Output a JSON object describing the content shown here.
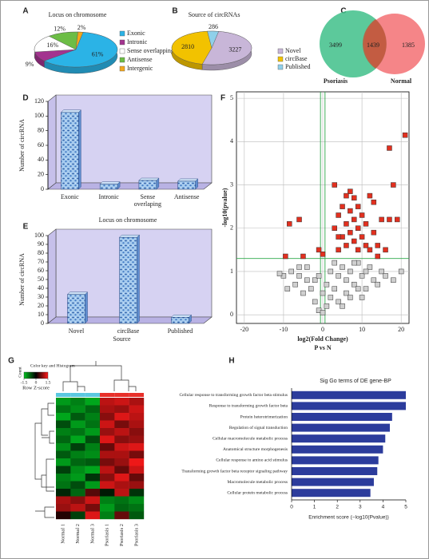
{
  "chart_data": [
    {
      "type": "pie3d",
      "panel": "A",
      "title": "Locus on chromosome",
      "categories": [
        "Exonic",
        "Intronic",
        "Sense overlapping",
        "Antisense",
        "Intergenic"
      ],
      "values": [
        61,
        9,
        16,
        12,
        2
      ],
      "value_labels": [
        "61%",
        "9%",
        "16%",
        "12%",
        "2%"
      ],
      "colors": [
        "#2bb3e6",
        "#a3338f",
        "#ffffff",
        "#6cbd45",
        "#f4a81d"
      ]
    },
    {
      "type": "pie3d",
      "panel": "B",
      "title": "Source of circRNAs",
      "categories": [
        "Novel",
        "circBase",
        "Published"
      ],
      "values": [
        3227,
        2810,
        286
      ],
      "colors": [
        "#c8b6d8",
        "#f2c200",
        "#8fd0ea"
      ]
    },
    {
      "type": "venn",
      "panel": "C",
      "sets": [
        {
          "name": "Psoriasis",
          "color": "#3fbf8a"
        },
        {
          "name": "Normal",
          "color": "#f2676a"
        }
      ],
      "values": [
        3499,
        1439,
        1385
      ]
    },
    {
      "type": "bar3d",
      "panel": "D",
      "ylabel": "Number of circRNA",
      "categories": [
        "Exonic",
        "Intronic",
        "Sense overlaping",
        "Antisense"
      ],
      "values": [
        105,
        7,
        12,
        11
      ],
      "ylim": [
        0,
        120
      ],
      "yticks": [
        0,
        20,
        40,
        60,
        80,
        100,
        120
      ]
    },
    {
      "type": "bar3d",
      "panel": "E",
      "title": "Locus on chromosome",
      "ylabel": "Number of circRNA",
      "xlabel": "Source",
      "categories": [
        "Novel",
        "circBase",
        "Published"
      ],
      "values": [
        33,
        98,
        7
      ],
      "ylim": [
        0,
        100
      ],
      "yticks": [
        0,
        10,
        20,
        30,
        40,
        50,
        60,
        70,
        80,
        90,
        100
      ]
    },
    {
      "type": "scatter",
      "panel": "F",
      "xlabel": "log2(Fold Change)",
      "subtitle": "P vs N",
      "ylabel": "-log10(pvalue)",
      "xlim": [
        -22,
        22
      ],
      "xticks": [
        -20,
        -10,
        0,
        10,
        20
      ],
      "ylim": [
        -0.2,
        5.15
      ],
      "yticks": [
        0,
        1,
        2,
        3,
        4,
        5
      ],
      "grid": true,
      "hlines": [
        1.3
      ],
      "vlines": [
        -0.58,
        0.58
      ],
      "line_color": "#2ea84a",
      "series": [
        {
          "color": "#cfcfcf",
          "x": [
            -10,
            -9,
            -8,
            -7,
            -6,
            -5,
            -4,
            -3,
            -2,
            -1,
            0,
            1,
            2,
            3,
            4,
            5,
            6,
            7,
            8,
            9,
            10,
            11,
            12,
            13,
            14,
            15,
            16,
            18,
            20,
            2,
            4,
            6,
            8,
            10,
            -2,
            -4,
            1,
            3,
            5,
            7,
            9,
            11,
            0,
            -1,
            -6,
            -11
          ],
          "values": [
            0.9,
            0.6,
            1.0,
            0.7,
            0.9,
            0.5,
            0.8,
            0.6,
            0.3,
            0.1,
            0.05,
            0.2,
            0.4,
            0.6,
            0.9,
            1.1,
            0.8,
            1.0,
            0.7,
            1.2,
            0.9,
            0.6,
            1.1,
            0.8,
            0.7,
            1.0,
            0.9,
            0.8,
            1.0,
            1.0,
            0.3,
            0.5,
            1.2,
            0.4,
            0.8,
            1.1,
            0.7,
            1.2,
            0.2,
            0.4,
            0.6,
            1.0,
            0.5,
            0.9,
            1.1,
            0.95
          ]
        },
        {
          "color": "#e2301f",
          "x": [
            -8.5,
            -6,
            -5,
            -9.5,
            -1,
            0,
            3,
            3,
            4,
            4,
            5,
            5,
            6,
            6,
            7,
            7,
            7,
            8,
            8,
            8,
            9,
            9,
            9,
            10,
            10,
            11,
            11,
            12,
            12,
            13,
            13,
            14,
            15,
            16,
            17,
            17,
            18,
            19,
            21,
            14,
            6,
            4
          ],
          "values": [
            2.1,
            2.2,
            1.35,
            1.35,
            1.5,
            1.4,
            3.0,
            2.0,
            1.5,
            2.3,
            1.8,
            2.5,
            1.6,
            2.1,
            2.85,
            1.9,
            2.4,
            2.7,
            1.7,
            2.2,
            2.5,
            1.5,
            2.0,
            2.3,
            1.8,
            1.6,
            2.1,
            2.75,
            1.5,
            2.6,
            1.9,
            1.6,
            2.2,
            1.5,
            2.2,
            3.85,
            3.0,
            2.2,
            4.15,
            1.35,
            2.75,
            1.8
          ]
        }
      ]
    },
    {
      "type": "heatmap",
      "panel": "G",
      "columns": [
        "Normal 1",
        "Normal 2",
        "Normal 3",
        "Psoriasis 1",
        "Psoriasis 2",
        "Psoriasis 3"
      ],
      "column_colors": [
        "#5bc8e0",
        "#5bc8e0",
        "#5bc8e0",
        "#e8302a",
        "#e8302a",
        "#e8302a"
      ],
      "colors": [
        "#00c020",
        "#000000",
        "#ff1a1a"
      ],
      "color_key": {
        "title": "Color key and Histogram",
        "ylabel": "Count",
        "xlabel": "Row Z-score",
        "ticks": [
          -1.5,
          0,
          1.5
        ]
      },
      "values": [
        [
          -1.2,
          -1.0,
          -1.3,
          1.1,
          1.2,
          1.0
        ],
        [
          -0.9,
          -1.1,
          -0.8,
          1.0,
          0.9,
          1.2
        ],
        [
          -1.3,
          -0.7,
          -1.0,
          0.8,
          1.3,
          1.1
        ],
        [
          -0.6,
          -1.2,
          -0.9,
          1.2,
          0.7,
          1.0
        ],
        [
          -1.0,
          -0.9,
          -1.2,
          0.9,
          1.1,
          0.8
        ],
        [
          -0.8,
          -1.3,
          -0.6,
          1.3,
          0.8,
          0.9
        ],
        [
          -1.1,
          -0.5,
          -1.0,
          0.6,
          1.2,
          1.3
        ],
        [
          -0.7,
          -1.0,
          -1.1,
          1.0,
          1.0,
          0.7
        ],
        [
          -1.2,
          -0.8,
          -0.7,
          0.7,
          0.9,
          1.4
        ],
        [
          -0.5,
          -1.1,
          -1.3,
          1.1,
          0.6,
          1.2
        ],
        [
          -1.0,
          -1.2,
          -0.4,
          0.8,
          1.3,
          0.6
        ],
        [
          -0.9,
          -0.6,
          -1.2,
          1.2,
          1.0,
          0.9
        ],
        [
          -0.3,
          -0.8,
          0.5,
          -0.2,
          1.1,
          -0.4
        ],
        [
          1.0,
          0.8,
          1.2,
          -1.0,
          -0.9,
          -1.1
        ],
        [
          0.9,
          1.1,
          0.7,
          -1.2,
          -0.8,
          -0.9
        ],
        [
          0.2,
          -0.5,
          1.3,
          -1.0,
          0.6,
          -0.7
        ]
      ]
    },
    {
      "type": "barh",
      "panel": "H",
      "title": "Sig Go terms of DE gene-BP",
      "xlabel": "Enrichment score (−log10(Pvalue))",
      "categories": [
        "Cellular response to transforming growth factor beta stimulus",
        "Response to transforming growth factor beta",
        "Protein heterotrimerization",
        "Regulation of signal transduction",
        "Cellular macromolecule metabolic process",
        "Anatomical structure morphogenesis",
        "Cellular response to amino acid stimulus",
        "Transforming growth factor beta receptor signaling pathway",
        "Macromolecule metabolic process",
        "Cellular protein metabolic process"
      ],
      "values": [
        5.0,
        5.0,
        4.4,
        4.3,
        4.1,
        4.0,
        3.8,
        3.75,
        3.6,
        3.45
      ],
      "xlim": [
        0,
        5
      ],
      "xticks": [
        0,
        1,
        2,
        3,
        4,
        5
      ],
      "color": "#2c3c9c"
    }
  ]
}
